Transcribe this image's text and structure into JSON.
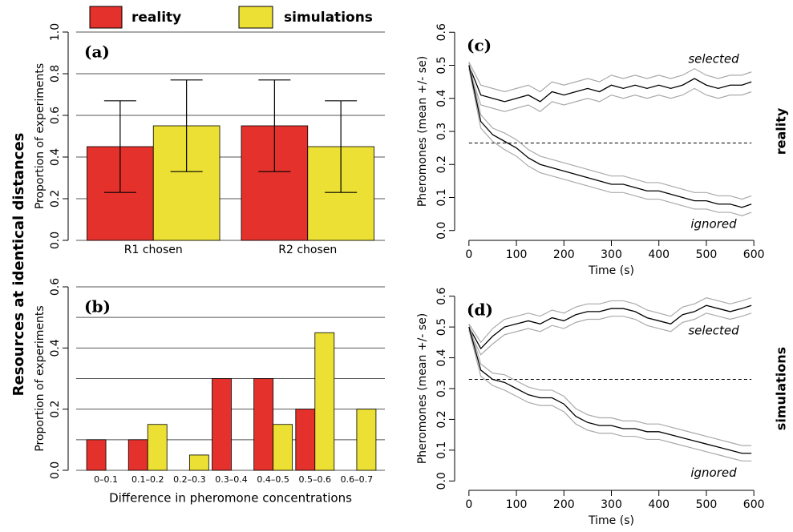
{
  "side_label": "Resources at identical distances",
  "chart_data": [
    {
      "type": "bar",
      "panel": "(a)",
      "ylabel": "Proportion of experiments",
      "categories": [
        "R1 chosen",
        "R2 chosen"
      ],
      "series": [
        {
          "name": "reality",
          "color": "#e4312b",
          "values": [
            0.45,
            0.55
          ],
          "error": [
            0.22,
            0.22
          ]
        },
        {
          "name": "simulations",
          "color": "#ebe033",
          "values": [
            0.55,
            0.45
          ],
          "error": [
            0.22,
            0.22
          ]
        }
      ],
      "ylim": [
        0,
        1
      ],
      "yticks": [
        {
          "value": 0,
          "label": "0.0"
        },
        0.2,
        0.4,
        0.6,
        0.8,
        {
          "value": 1,
          "label": "1.0"
        }
      ],
      "ygrid": [
        0,
        0.2,
        0.4,
        0.6,
        0.8,
        1
      ]
    },
    {
      "type": "bar",
      "panel": "(b)",
      "ylabel": "Proportion of experiments",
      "xlabel": "Difference in pheromone concentrations",
      "categories": [
        "0–0.1",
        "0.1–0.2",
        "0.2–0.3",
        "0.3–0.4",
        "0.4–0.5",
        "0.5–0.6",
        "0.6–0.7"
      ],
      "series": [
        {
          "name": "reality",
          "color": "#e4312b",
          "values": [
            0.1,
            0.1,
            0,
            0.3,
            0.3,
            0.2,
            0
          ]
        },
        {
          "name": "simulations",
          "color": "#ebe033",
          "values": [
            0,
            0.15,
            0.05,
            0,
            0.15,
            0.45,
            0.2
          ]
        }
      ],
      "ylim": [
        0,
        0.6
      ],
      "yticks": [
        {
          "value": 0,
          "label": "0.0"
        },
        0.2,
        0.4,
        0.6
      ],
      "ygrid": [
        0,
        0.1,
        0.2,
        0.3,
        0.4,
        0.5,
        0.6
      ]
    },
    {
      "type": "line",
      "panel": "(c)",
      "row_label": "reality",
      "xlabel": "Time (s)",
      "ylabel": "Pheromones (mean +/- se)",
      "x": [
        0,
        25,
        50,
        75,
        100,
        125,
        150,
        175,
        200,
        225,
        250,
        275,
        300,
        325,
        350,
        375,
        400,
        425,
        450,
        475,
        500,
        525,
        550,
        575,
        595
      ],
      "series": [
        {
          "name": "selected",
          "color": "#000000",
          "band_color": "#aaaaaa",
          "values": [
            0.5,
            0.41,
            0.4,
            0.39,
            0.4,
            0.41,
            0.39,
            0.42,
            0.41,
            0.42,
            0.43,
            0.42,
            0.44,
            0.43,
            0.44,
            0.43,
            0.44,
            0.43,
            0.44,
            0.46,
            0.44,
            0.43,
            0.44,
            0.44,
            0.45
          ],
          "se": [
            0.01,
            0.03,
            0.03,
            0.03,
            0.03,
            0.03,
            0.03,
            0.03,
            0.03,
            0.03,
            0.03,
            0.03,
            0.03,
            0.03,
            0.03,
            0.03,
            0.03,
            0.03,
            0.03,
            0.03,
            0.03,
            0.03,
            0.03,
            0.03,
            0.03
          ]
        },
        {
          "name": "ignored",
          "color": "#000000",
          "band_color": "#aaaaaa",
          "values": [
            0.5,
            0.33,
            0.29,
            0.27,
            0.25,
            0.22,
            0.2,
            0.19,
            0.18,
            0.17,
            0.16,
            0.15,
            0.14,
            0.14,
            0.13,
            0.12,
            0.12,
            0.11,
            0.1,
            0.09,
            0.09,
            0.08,
            0.08,
            0.07,
            0.08
          ],
          "se": [
            0.01,
            0.02,
            0.02,
            0.025,
            0.025,
            0.025,
            0.025,
            0.025,
            0.025,
            0.025,
            0.025,
            0.025,
            0.025,
            0.025,
            0.025,
            0.025,
            0.025,
            0.025,
            0.025,
            0.025,
            0.025,
            0.025,
            0.025,
            0.025,
            0.025
          ]
        }
      ],
      "hline": 0.265,
      "xlim": [
        -20,
        620
      ],
      "xticks": [
        0,
        100,
        200,
        300,
        400,
        500,
        600
      ],
      "ylim": [
        -0.02,
        0.62
      ],
      "yticks": [
        {
          "value": 0,
          "label": "0.0"
        },
        0.1,
        0.2,
        0.3,
        0.4,
        0.5,
        0.6
      ]
    },
    {
      "type": "line",
      "panel": "(d)",
      "row_label": "simulations",
      "xlabel": "Time (s)",
      "ylabel": "Pheromones (mean +/- se)",
      "x": [
        0,
        25,
        50,
        75,
        100,
        125,
        150,
        175,
        200,
        225,
        250,
        275,
        300,
        325,
        350,
        375,
        400,
        425,
        450,
        475,
        500,
        525,
        550,
        575,
        595
      ],
      "series": [
        {
          "name": "selected",
          "color": "#000000",
          "band_color": "#aaaaaa",
          "values": [
            0.5,
            0.43,
            0.47,
            0.5,
            0.51,
            0.52,
            0.51,
            0.53,
            0.52,
            0.54,
            0.55,
            0.55,
            0.56,
            0.56,
            0.55,
            0.53,
            0.52,
            0.51,
            0.54,
            0.55,
            0.57,
            0.56,
            0.55,
            0.56,
            0.57
          ],
          "se": [
            0.01,
            0.02,
            0.025,
            0.025,
            0.025,
            0.025,
            0.025,
            0.025,
            0.025,
            0.025,
            0.025,
            0.025,
            0.025,
            0.025,
            0.025,
            0.025,
            0.025,
            0.025,
            0.025,
            0.025,
            0.025,
            0.025,
            0.025,
            0.025,
            0.025
          ]
        },
        {
          "name": "ignored",
          "color": "#000000",
          "band_color": "#aaaaaa",
          "values": [
            0.5,
            0.36,
            0.33,
            0.32,
            0.3,
            0.28,
            0.27,
            0.27,
            0.25,
            0.21,
            0.19,
            0.18,
            0.18,
            0.17,
            0.17,
            0.16,
            0.16,
            0.15,
            0.14,
            0.13,
            0.12,
            0.11,
            0.1,
            0.09,
            0.09
          ],
          "se": [
            0.01,
            0.02,
            0.02,
            0.025,
            0.025,
            0.025,
            0.025,
            0.025,
            0.025,
            0.025,
            0.025,
            0.025,
            0.025,
            0.025,
            0.025,
            0.025,
            0.025,
            0.025,
            0.025,
            0.025,
            0.025,
            0.025,
            0.025,
            0.025,
            0.025
          ]
        }
      ],
      "hline": 0.33,
      "xlim": [
        -20,
        620
      ],
      "xticks": [
        0,
        100,
        200,
        300,
        400,
        500,
        600
      ],
      "ylim": [
        -0.02,
        0.62
      ],
      "yticks": [
        {
          "value": 0,
          "label": "0.0"
        },
        0.1,
        0.2,
        0.3,
        0.4,
        0.5,
        0.6
      ]
    }
  ]
}
